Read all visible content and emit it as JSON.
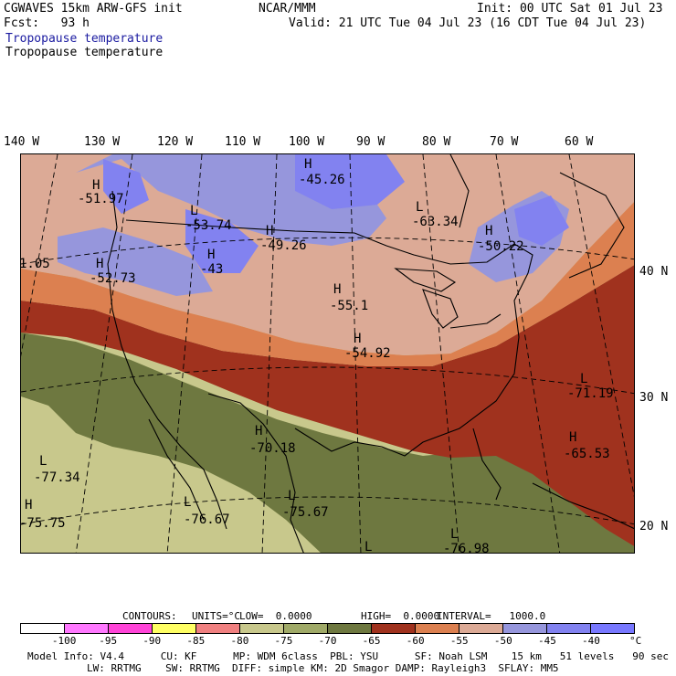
{
  "header": {
    "model_line": "CGWAVES 15km ARW-GFS init",
    "org": "NCAR/MMM",
    "init": "Init: 00 UTC Sat 01 Jul 23",
    "fcst": "Fcst:   93 h",
    "valid": "Valid: 21 UTC Tue 04 Jul 23 (16 CDT Tue 04 Jul 23)",
    "field_title_1": "Tropopause temperature",
    "field_title_2": "Tropopause temperature"
  },
  "longitude_labels": [
    "140 W",
    "130 W",
    "120 W",
    "110 W",
    "100 W",
    "90 W",
    "80 W",
    "70 W",
    "60 W"
  ],
  "latitude_labels": [
    "40 N",
    "30 N",
    "20 N"
  ],
  "extrema": [
    {
      "type": "H",
      "value": "-51.97"
    },
    {
      "type": "H",
      "value": "-45.26"
    },
    {
      "type": "L",
      "value": "-53.74"
    },
    {
      "type": "L",
      "value": "-63.34"
    },
    {
      "type": "H",
      "value": "-49.26"
    },
    {
      "type": "H",
      "value": "-43"
    },
    {
      "type": "H",
      "value": "-50.22"
    },
    {
      "type": "H",
      "value": "-52.73"
    },
    {
      "type": "H",
      "value": "-55.1"
    },
    {
      "type": "H",
      "value": "-54.92"
    },
    {
      "type": "L",
      "value": "-71.19"
    },
    {
      "type": "H",
      "value": "-70.18"
    },
    {
      "type": "H",
      "value": "-65.53"
    },
    {
      "type": "L",
      "value": "-77.34"
    },
    {
      "type": "L",
      "value": "-76.67"
    },
    {
      "type": "L",
      "value": "-75.67"
    },
    {
      "type": "H",
      "value": "-75.75"
    },
    {
      "type": "L",
      "value": "-76.98"
    },
    {
      "type": "L",
      "value": ""
    }
  ],
  "edge_value": "1.05",
  "contours_line": {
    "label": "CONTOURS:",
    "units": "UNITS=°C",
    "low": "LOW=  0.0000",
    "high": "HIGH=  0.0000",
    "interval": "INTERVAL=   1000.0"
  },
  "colorbar": {
    "colors": [
      "#ffffff",
      "#ff78ff",
      "#ff44d8",
      "#ffff64",
      "#f08080",
      "#c8c88c",
      "#a0aa68",
      "#6e7840",
      "#a0321e",
      "#dc8050",
      "#dcaa96",
      "#9696dc",
      "#8282f0",
      "#7878ff"
    ],
    "labels": [
      "-100",
      "-95",
      "-90",
      "-85",
      "-80",
      "-75",
      "-70",
      "-65",
      "-60",
      "-55",
      "-50",
      "-45",
      "-40"
    ],
    "unit": "°C"
  },
  "footer": {
    "line1": "Model Info: V4.4      CU: KF      MP: WDM 6class  PBL: YSU      SF: Noah LSM    15 km   51 levels   90 sec",
    "line2": "LW: RRTMG    SW: RRTMG  DIFF: simple KM: 2D Smagor DAMP: Rayleigh3  SFLAY: MM5"
  },
  "colors": {
    "field_title": "#1a1aa0",
    "band_tropical": "#c8c88c",
    "band_olive": "#6e7840",
    "band_red": "#a0321e",
    "band_orange": "#dc8050",
    "band_pink": "#dcaa96",
    "band_lavender": "#9696dc",
    "band_blue": "#8282f0"
  }
}
